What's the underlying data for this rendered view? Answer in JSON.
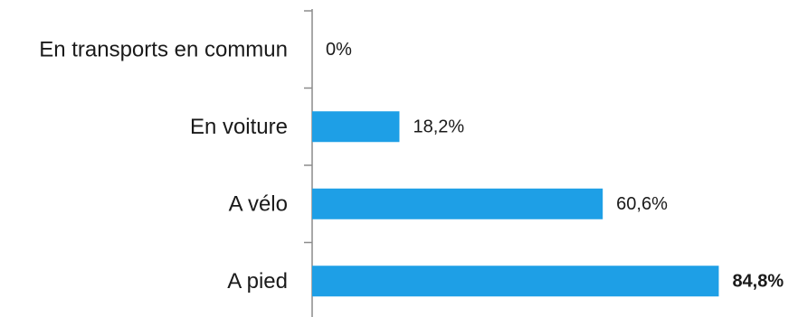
{
  "chart_data": {
    "type": "bar",
    "orientation": "horizontal",
    "categories": [
      "En transports en commun",
      "En voiture",
      "A vélo",
      "A pied"
    ],
    "values": [
      0,
      18.2,
      60.6,
      84.8
    ],
    "value_labels": [
      "0%",
      "18,2%",
      "60,6%",
      "84,8%"
    ],
    "highlight_index": 3,
    "xlim": [
      0,
      100
    ],
    "bar_color": "#1e9fe6",
    "axis_color": "#8c8c8c",
    "title": "",
    "xlabel": "",
    "ylabel": "",
    "grid": false,
    "legend": "none"
  }
}
